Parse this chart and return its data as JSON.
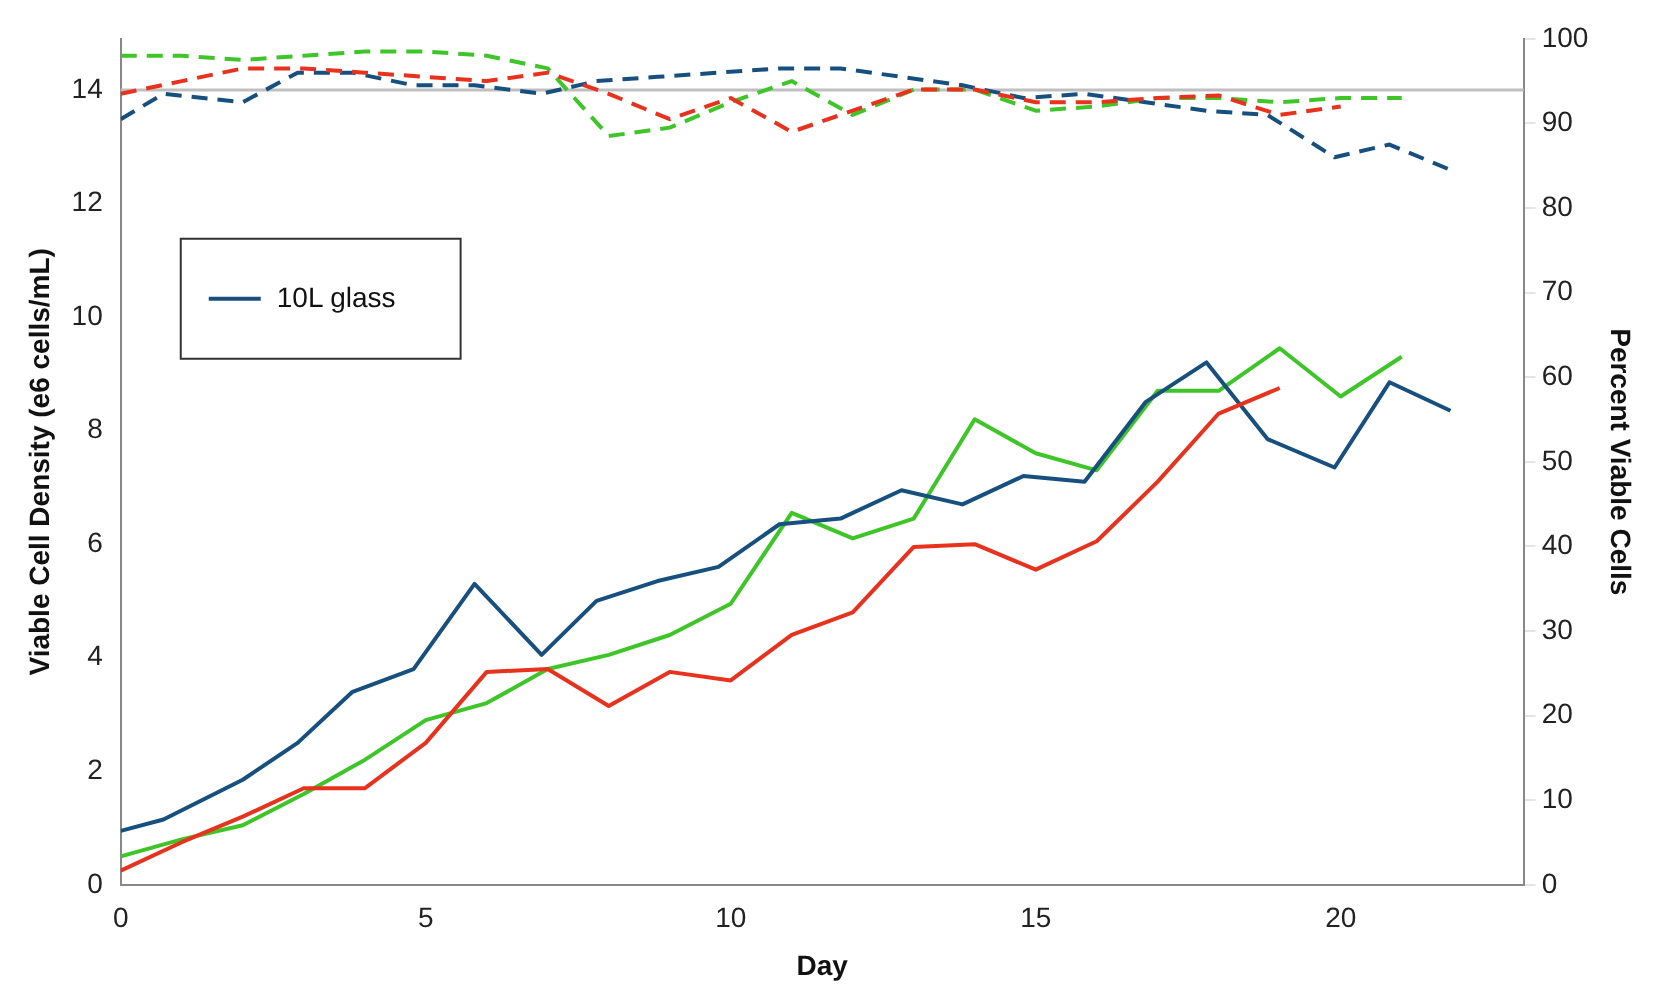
{
  "chart_data": {
    "type": "line",
    "xlabel": "Day",
    "ylabel": "Viable Cell Density (e6 cells/mL)",
    "y2label": "Percent Viable Cells",
    "xlim": [
      0,
      23
    ],
    "xticks": [
      0,
      5,
      10,
      15,
      20
    ],
    "ylim": [
      0,
      14.9
    ],
    "yticks": [
      0,
      2,
      4,
      6,
      8,
      10,
      12,
      14
    ],
    "y2lim": [
      0,
      100
    ],
    "y2ticks": [
      0,
      10,
      20,
      30,
      40,
      50,
      60,
      70,
      80,
      90,
      100
    ],
    "legend": "top left",
    "marker": "none",
    "grid": false,
    "ref_lines": [
      {
        "axis": "y",
        "value": 14,
        "label": null,
        "color": "#bfbfbf"
      }
    ],
    "series": [
      {
        "color": "#e8321e",
        "x": [
          0,
          1,
          2,
          3,
          4,
          5,
          6,
          7,
          8,
          9,
          10,
          11,
          12,
          13,
          14,
          15,
          16,
          17,
          18,
          19
        ],
        "values": [
          0.25,
          0.75,
          1.2,
          1.7,
          1.7,
          2.5,
          3.75,
          3.8,
          3.15,
          3.75,
          3.6,
          4.4,
          4.8,
          5.95,
          6.0,
          5.55,
          6.05,
          7.1,
          8.3,
          8.75
        ]
      },
      {
        "name": "10L glass",
        "color": "#17507f",
        "x": [
          0,
          0.7,
          2,
          2.9,
          3.8,
          4.8,
          5.8,
          6.9,
          7.8,
          8.8,
          9.8,
          10.8,
          11.8,
          12.8,
          13.8,
          14.8,
          15.8,
          16.8,
          17.8,
          18.8,
          19.9,
          20.8,
          21.8
        ],
        "values": [
          0.95,
          1.15,
          1.85,
          2.5,
          3.4,
          3.8,
          5.3,
          4.05,
          5.0,
          5.35,
          5.6,
          6.35,
          6.45,
          6.95,
          6.7,
          7.2,
          7.1,
          8.5,
          9.2,
          7.85,
          7.35,
          8.85,
          8.35
        ]
      },
      {
        "color": "#3ec628",
        "x": [
          0,
          1,
          2,
          3,
          4,
          5,
          6,
          7,
          8,
          9,
          10,
          11,
          12,
          13,
          14,
          15,
          16,
          17,
          18,
          19,
          20,
          21
        ],
        "values": [
          0.5,
          0.8,
          1.05,
          1.6,
          2.2,
          2.9,
          3.2,
          3.8,
          4.05,
          4.4,
          4.95,
          6.55,
          6.1,
          6.45,
          8.2,
          7.6,
          7.3,
          8.7,
          8.7,
          9.45,
          8.6,
          9.3
        ]
      },
      {
        "color": "#e8321e",
        "axis": "y2",
        "line_style": "dashed",
        "x": [
          0,
          1,
          2,
          3,
          4,
          5,
          6,
          7,
          8,
          9,
          10,
          11,
          12,
          13,
          14,
          15,
          16,
          17,
          18,
          19,
          20
        ],
        "values": [
          93.5,
          95,
          96.5,
          96.5,
          96,
          95.5,
          95,
          96,
          93.5,
          90.5,
          93,
          89,
          91.5,
          94,
          94,
          92.5,
          92.5,
          93,
          93.3,
          91,
          92
        ]
      },
      {
        "color": "#17507f",
        "axis": "y2",
        "line_style": "dashed",
        "x": [
          0,
          0.7,
          2,
          2.9,
          3.8,
          4.8,
          5.8,
          6.9,
          7.8,
          8.8,
          9.8,
          10.8,
          11.8,
          12.8,
          13.8,
          14.8,
          15.8,
          16.8,
          17.8,
          18.8,
          19.9,
          20.8,
          21.8
        ],
        "values": [
          90.5,
          93.5,
          92.5,
          96,
          96,
          94.5,
          94.5,
          93.5,
          95,
          95.5,
          96,
          96.5,
          96.5,
          95.5,
          94.5,
          93,
          93.5,
          92.5,
          91.5,
          91,
          86,
          87.5,
          84.5
        ]
      },
      {
        "color": "#3ec628",
        "axis": "y2",
        "line_style": "dashed",
        "x": [
          0,
          1,
          2,
          3,
          4,
          5,
          6,
          7,
          8,
          9,
          10,
          11,
          12,
          13,
          14,
          15,
          16,
          17,
          18,
          19,
          20,
          21
        ],
        "values": [
          98,
          98,
          97.5,
          98,
          98.5,
          98.5,
          98,
          96.5,
          88.5,
          89.5,
          92.5,
          95,
          91,
          94,
          94,
          91.5,
          92,
          93,
          93,
          92.5,
          93,
          93
        ]
      }
    ]
  }
}
